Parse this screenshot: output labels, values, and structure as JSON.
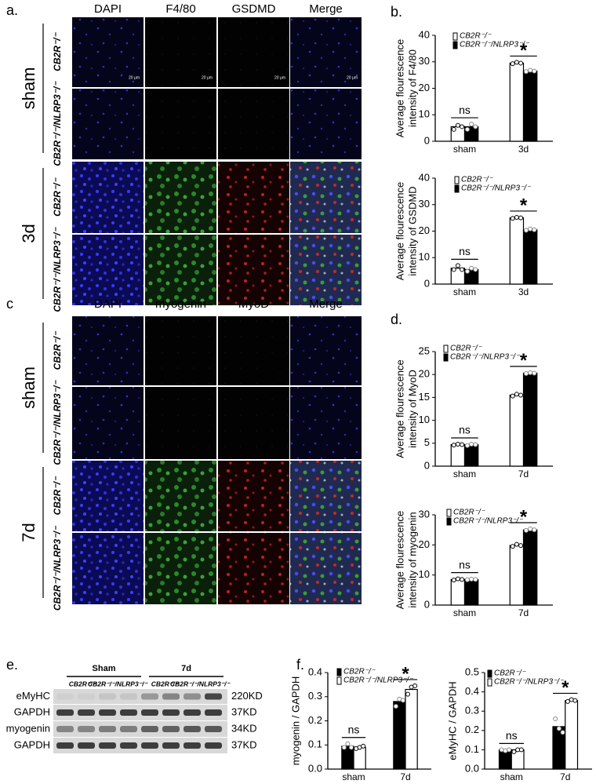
{
  "panel_labels": [
    "a.",
    "b.",
    "c",
    "d.",
    "e.",
    "f."
  ],
  "scale_bar": "20 μm",
  "panel_a": {
    "columns": [
      "DAPI",
      "F4/80",
      "GSDMD",
      "Merge"
    ],
    "groups": [
      "sham",
      "3d"
    ],
    "genotypes": [
      "CB2R⁻/⁻",
      "CB2R⁻/⁻/NLRP3⁻/⁻"
    ]
  },
  "panel_c": {
    "columns": [
      "DAPI",
      "myogenin",
      "MyoD",
      "Merge"
    ],
    "groups": [
      "sham",
      "7d"
    ],
    "genotypes": [
      "CB2R⁻/⁻",
      "CB2R⁻/⁻/NLRP3⁻/⁻"
    ]
  },
  "panel_e": {
    "groups": [
      "Sham",
      "7d"
    ],
    "genotypes": [
      "CB2R⁻/⁻",
      "CB2R⁻/⁻/NLRP3⁻/⁻"
    ],
    "proteins": [
      "eMyHC",
      "GAPDH",
      "myogenin",
      "GAPDH"
    ],
    "sizes": [
      "220KD",
      "37KD",
      "34KD",
      "37KD"
    ]
  },
  "chart_data": [
    {
      "type": "bar",
      "ylabel": [
        "Average flourescence",
        "intensity of F4/80"
      ],
      "categories": [
        "sham",
        "3d"
      ],
      "series": [
        {
          "name": "CB2R⁻/⁻",
          "color": "#ffffff",
          "values": [
            5.5,
            29.5
          ],
          "points": [
            [
              4.5,
              6,
              5.5
            ],
            [
              29.3,
              29.8,
              29.5
            ]
          ]
        },
        {
          "name": "CB2R⁻/⁻/NLRP3⁻/⁻",
          "color": "#000000",
          "values": [
            5.5,
            26.5
          ],
          "points": [
            [
              4.5,
              6.5,
              5.5
            ],
            [
              26.3,
              26.8,
              26.5
            ]
          ]
        }
      ],
      "annotations": [
        "ns",
        "*"
      ],
      "ylim": [
        0,
        40
      ],
      "yticks": [
        0,
        10,
        20,
        30,
        40
      ]
    },
    {
      "type": "bar",
      "ylabel": [
        "Average flourescence",
        "intensity of GSDMD"
      ],
      "categories": [
        "sham",
        "3d"
      ],
      "series": [
        {
          "name": "CB2R⁻/⁻",
          "color": "#ffffff",
          "values": [
            6,
            25
          ],
          "points": [
            [
              5.5,
              7,
              5.5
            ],
            [
              24.8,
              25.2,
              25
            ]
          ]
        },
        {
          "name": "CB2R⁻/⁻/NLRP3⁻/⁻",
          "color": "#000000",
          "values": [
            5.5,
            20.5
          ],
          "points": [
            [
              4.8,
              6,
              5.5
            ],
            [
              20.3,
              20.8,
              20.5
            ]
          ]
        }
      ],
      "annotations": [
        "ns",
        "*"
      ],
      "ylim": [
        0,
        40
      ],
      "yticks": [
        0,
        10,
        20,
        30,
        40
      ]
    },
    {
      "type": "bar",
      "ylabel": [
        "Average flourescence",
        "intensity of MyoD"
      ],
      "categories": [
        "sham",
        "7d"
      ],
      "series": [
        {
          "name": "CB2R⁻/⁻",
          "color": "#ffffff",
          "values": [
            4.7,
            15.5
          ],
          "points": [
            [
              4.6,
              4.8,
              4.7
            ],
            [
              15.3,
              15.7,
              15.5
            ]
          ]
        },
        {
          "name": "CB2R⁻/⁻/NLRP3⁻/⁻",
          "color": "#000000",
          "values": [
            4.7,
            20.3
          ],
          "points": [
            [
              4.5,
              4.8,
              4.7
            ],
            [
              20.2,
              20.4,
              20.3
            ]
          ]
        }
      ],
      "annotations": [
        "ns",
        "*"
      ],
      "ylim": [
        0,
        25
      ],
      "yticks": [
        0,
        5,
        10,
        15,
        20,
        25
      ]
    },
    {
      "type": "bar",
      "ylabel": [
        "Average flourescence",
        "intensity of myogenin"
      ],
      "categories": [
        "sham",
        "7d"
      ],
      "series": [
        {
          "name": "CB2R⁻/⁻",
          "color": "#ffffff",
          "values": [
            8.5,
            19.8
          ],
          "points": [
            [
              8.3,
              8.7,
              8.5
            ],
            [
              19.5,
              20.2,
              19.8
            ]
          ]
        },
        {
          "name": "CB2R⁻/⁻/NLRP3⁻/⁻",
          "color": "#000000",
          "values": [
            8.5,
            25
          ],
          "points": [
            [
              8.4,
              8.6,
              8.5
            ],
            [
              24.8,
              25.3,
              25
            ]
          ]
        }
      ],
      "annotations": [
        "ns",
        "*"
      ],
      "ylim": [
        0,
        30
      ],
      "yticks": [
        0,
        10,
        20,
        30
      ]
    },
    {
      "type": "bar",
      "ylabel": [
        "myogenin / GAPDH"
      ],
      "categories": [
        "sham",
        "7d"
      ],
      "series": [
        {
          "name": "CB2R⁻/⁻",
          "color": "#000000",
          "values": [
            0.095,
            0.28
          ],
          "points": [
            [
              0.09,
              0.105,
              0.09
            ],
            [
              0.26,
              0.29,
              0.285
            ]
          ]
        },
        {
          "name": "CB2R⁻/⁻/NLRP3⁻/⁻",
          "color": "#ffffff",
          "values": [
            0.09,
            0.33
          ],
          "points": [
            [
              0.085,
              0.09,
              0.095
            ],
            [
              0.31,
              0.34,
              0.345
            ]
          ]
        }
      ],
      "annotations": [
        "ns",
        "*"
      ],
      "ylim": [
        0,
        0.4
      ],
      "yticks": [
        {
          "value": 0,
          "label": "0.0"
        },
        0.1,
        0.2,
        0.3,
        0.4
      ]
    },
    {
      "type": "bar",
      "ylabel": [
        "eMyHC / GAPDH"
      ],
      "categories": [
        "sham",
        "7d"
      ],
      "series": [
        {
          "name": "CB2R⁻/⁻",
          "color": "#000000",
          "values": [
            0.1,
            0.22
          ],
          "points": [
            [
              0.1,
              0.095,
              0.1
            ],
            [
              0.26,
              0.21,
              0.19
            ]
          ]
        },
        {
          "name": "CB2R⁻/⁻/NLRP3⁻/⁻",
          "color": "#ffffff",
          "values": [
            0.1,
            0.355
          ],
          "points": [
            [
              0.09,
              0.1,
              0.1
            ],
            [
              0.35,
              0.36,
              0.355
            ]
          ]
        }
      ],
      "annotations": [
        "ns",
        "*"
      ],
      "ylim": [
        0,
        0.5
      ],
      "yticks": [
        {
          "value": 0,
          "label": "0.0"
        },
        0.1,
        0.2,
        0.3,
        0.4,
        0.5
      ]
    }
  ]
}
